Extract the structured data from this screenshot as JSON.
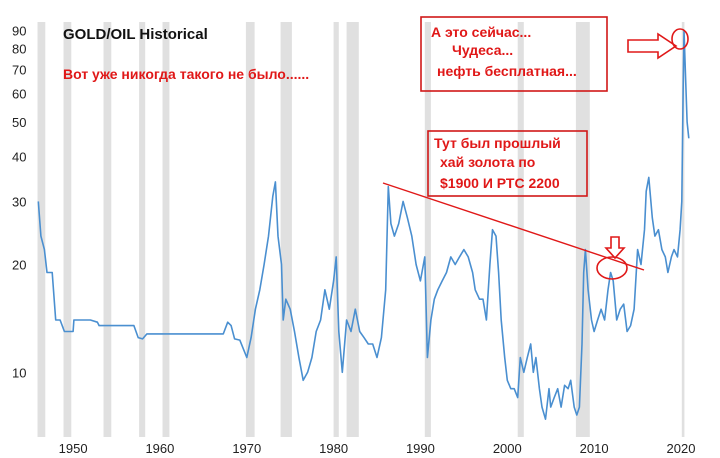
{
  "chart_data": {
    "type": "line",
    "title": "GOLD/OIL Historical",
    "xlabel": "",
    "ylabel": "",
    "x_ticks": [
      1950,
      1960,
      1970,
      1980,
      1990,
      2000,
      2010,
      2020
    ],
    "y_scale": "log",
    "y_ticks": [
      10,
      20,
      30,
      40,
      50,
      60,
      70,
      80,
      90
    ],
    "xlim": [
      1945.5,
      2021.5
    ],
    "ylim": [
      6.6,
      95
    ],
    "line_color": "#4a8fd0",
    "recession_color": "#e0e0e0",
    "recessions": [
      [
        1945.9,
        1946.8
      ],
      [
        1948.9,
        1949.8
      ],
      [
        1953.5,
        1954.4
      ],
      [
        1957.6,
        1958.3
      ],
      [
        1960.3,
        1961.1
      ],
      [
        1969.9,
        1970.9
      ],
      [
        1973.9,
        1975.2
      ],
      [
        1980.0,
        1980.6
      ],
      [
        1981.5,
        1982.9
      ],
      [
        1990.5,
        1991.2
      ],
      [
        2001.2,
        2001.9
      ],
      [
        2007.9,
        2009.5
      ],
      [
        2020.1,
        2020.4
      ]
    ],
    "series": [
      {
        "values": [
          [
            1946.0,
            30
          ],
          [
            1946.3,
            24
          ],
          [
            1946.7,
            22
          ],
          [
            1947.0,
            19
          ],
          [
            1947.6,
            19
          ],
          [
            1948.0,
            14
          ],
          [
            1948.5,
            14
          ],
          [
            1949.0,
            13
          ],
          [
            1950.0,
            13
          ],
          [
            1950.1,
            14
          ],
          [
            1951.0,
            14
          ],
          [
            1952.0,
            14
          ],
          [
            1952.8,
            13.8
          ],
          [
            1953.0,
            13.5
          ],
          [
            1955.0,
            13.5
          ],
          [
            1957.0,
            13.5
          ],
          [
            1957.5,
            12.5
          ],
          [
            1958.0,
            12.4
          ],
          [
            1958.5,
            12.8
          ],
          [
            1960.0,
            12.8
          ],
          [
            1962.0,
            12.8
          ],
          [
            1964.0,
            12.8
          ],
          [
            1966.0,
            12.8
          ],
          [
            1967.3,
            12.8
          ],
          [
            1967.8,
            13.8
          ],
          [
            1968.2,
            13.5
          ],
          [
            1968.6,
            12.4
          ],
          [
            1969.2,
            12.3
          ],
          [
            1970.0,
            11.0
          ],
          [
            1970.5,
            12.5
          ],
          [
            1971.0,
            15
          ],
          [
            1971.5,
            17
          ],
          [
            1972.0,
            20
          ],
          [
            1972.5,
            24
          ],
          [
            1973.0,
            31
          ],
          [
            1973.3,
            34
          ],
          [
            1973.6,
            24
          ],
          [
            1974.0,
            20
          ],
          [
            1974.2,
            14
          ],
          [
            1974.5,
            16
          ],
          [
            1975.0,
            15
          ],
          [
            1975.5,
            13
          ],
          [
            1976.0,
            11
          ],
          [
            1976.5,
            9.5
          ],
          [
            1977.0,
            10
          ],
          [
            1977.5,
            11
          ],
          [
            1978.0,
            13
          ],
          [
            1978.5,
            14
          ],
          [
            1979.0,
            17
          ],
          [
            1979.5,
            15
          ],
          [
            1980.0,
            18
          ],
          [
            1980.3,
            21
          ],
          [
            1980.6,
            13
          ],
          [
            1981.0,
            10
          ],
          [
            1981.5,
            14
          ],
          [
            1982.0,
            13
          ],
          [
            1982.5,
            15
          ],
          [
            1983.0,
            13
          ],
          [
            1983.5,
            12.5
          ],
          [
            1984.0,
            12
          ],
          [
            1984.5,
            12
          ],
          [
            1985.0,
            11
          ],
          [
            1985.5,
            12.5
          ],
          [
            1986.0,
            17
          ],
          [
            1986.3,
            33
          ],
          [
            1986.6,
            26
          ],
          [
            1987.0,
            24
          ],
          [
            1987.5,
            26
          ],
          [
            1988.0,
            30
          ],
          [
            1988.5,
            27
          ],
          [
            1989.0,
            24
          ],
          [
            1989.5,
            20
          ],
          [
            1990.0,
            18
          ],
          [
            1990.5,
            21
          ],
          [
            1990.8,
            11
          ],
          [
            1991.2,
            14
          ],
          [
            1991.6,
            16
          ],
          [
            1992.0,
            17
          ],
          [
            1992.5,
            18
          ],
          [
            1993.0,
            19
          ],
          [
            1993.5,
            21
          ],
          [
            1994.0,
            20
          ],
          [
            1994.5,
            21
          ],
          [
            1995.0,
            22
          ],
          [
            1995.5,
            21
          ],
          [
            1996.0,
            19
          ],
          [
            1996.3,
            17
          ],
          [
            1996.8,
            16
          ],
          [
            1997.2,
            16
          ],
          [
            1997.6,
            14
          ],
          [
            1998.0,
            20
          ],
          [
            1998.3,
            25
          ],
          [
            1998.7,
            24
          ],
          [
            1999.0,
            19
          ],
          [
            1999.3,
            14
          ],
          [
            1999.7,
            11
          ],
          [
            2000.0,
            9.5
          ],
          [
            2000.4,
            9
          ],
          [
            2000.8,
            9
          ],
          [
            2001.2,
            8.5
          ],
          [
            2001.5,
            11
          ],
          [
            2001.9,
            10
          ],
          [
            2002.3,
            11
          ],
          [
            2002.7,
            12
          ],
          [
            2003.0,
            10
          ],
          [
            2003.3,
            11
          ],
          [
            2003.7,
            9
          ],
          [
            2004.0,
            8
          ],
          [
            2004.4,
            7.4
          ],
          [
            2004.8,
            9
          ],
          [
            2005.0,
            8
          ],
          [
            2005.4,
            8.5
          ],
          [
            2005.8,
            9
          ],
          [
            2006.2,
            8
          ],
          [
            2006.6,
            9.2
          ],
          [
            2007.0,
            9
          ],
          [
            2007.3,
            9.5
          ],
          [
            2007.7,
            8
          ],
          [
            2008.0,
            7.6
          ],
          [
            2008.3,
            8
          ],
          [
            2008.6,
            12
          ],
          [
            2008.8,
            19
          ],
          [
            2009.0,
            22
          ],
          [
            2009.3,
            17
          ],
          [
            2009.7,
            14
          ],
          [
            2010.0,
            13
          ],
          [
            2010.4,
            14
          ],
          [
            2010.8,
            15
          ],
          [
            2011.2,
            14
          ],
          [
            2011.6,
            17
          ],
          [
            2011.9,
            19
          ],
          [
            2012.2,
            18
          ],
          [
            2012.6,
            14
          ],
          [
            2013.0,
            15
          ],
          [
            2013.4,
            15.5
          ],
          [
            2013.8,
            13
          ],
          [
            2014.2,
            13.5
          ],
          [
            2014.6,
            15
          ],
          [
            2015.0,
            22
          ],
          [
            2015.4,
            20
          ],
          [
            2015.8,
            25
          ],
          [
            2016.0,
            32
          ],
          [
            2016.3,
            35
          ],
          [
            2016.7,
            27
          ],
          [
            2017.0,
            24
          ],
          [
            2017.4,
            25
          ],
          [
            2017.8,
            22
          ],
          [
            2018.2,
            21
          ],
          [
            2018.5,
            19
          ],
          [
            2018.9,
            21
          ],
          [
            2019.2,
            22
          ],
          [
            2019.6,
            21
          ],
          [
            2019.9,
            25
          ],
          [
            2020.1,
            30
          ],
          [
            2020.25,
            60
          ],
          [
            2020.35,
            90
          ],
          [
            2020.5,
            70
          ],
          [
            2020.7,
            50
          ],
          [
            2020.9,
            45
          ]
        ]
      }
    ],
    "annotations": {
      "never_before": "Вот уже никогда такого не было......",
      "now_line1": "А это сейчас...",
      "now_line2": "Чудеса...",
      "now_line3": "нефть бесплатная...",
      "prev_high_line1": "Тут был прошлый",
      "prev_high_line2": "хай золота по",
      "prev_high_line3": "$1900 И РТС 2200"
    }
  }
}
